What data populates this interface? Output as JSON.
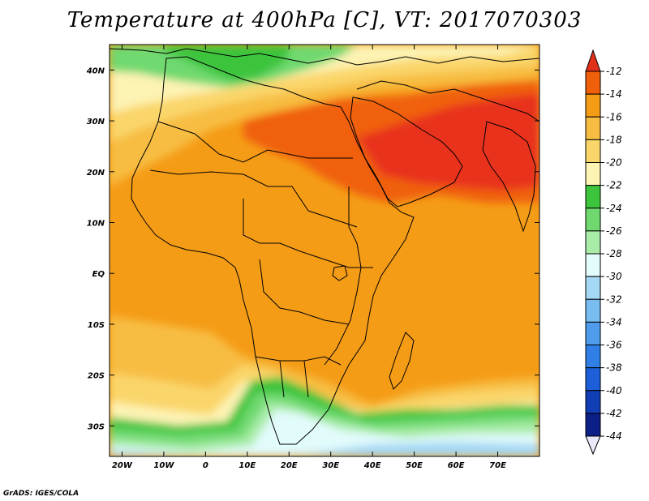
{
  "title": "Temperature at 400hPa [C], VT: 2017070303",
  "credit": "GrADS: IGES/COLA",
  "map": {
    "lon_range": [
      -23,
      80
    ],
    "lat_range": [
      -36,
      45
    ],
    "lon_ticks": [
      {
        "lon": -20,
        "label": "20W"
      },
      {
        "lon": -10,
        "label": "10W"
      },
      {
        "lon": 0,
        "label": "0"
      },
      {
        "lon": 10,
        "label": "10E"
      },
      {
        "lon": 20,
        "label": "20E"
      },
      {
        "lon": 30,
        "label": "30E"
      },
      {
        "lon": 40,
        "label": "40E"
      },
      {
        "lon": 50,
        "label": "50E"
      },
      {
        "lon": 60,
        "label": "60E"
      },
      {
        "lon": 70,
        "label": "70E"
      }
    ],
    "lat_ticks": [
      {
        "lat": 40,
        "label": "40N"
      },
      {
        "lat": 30,
        "label": "30N"
      },
      {
        "lat": 20,
        "label": "20N"
      },
      {
        "lat": 10,
        "label": "10N"
      },
      {
        "lat": 0,
        "label": "EQ"
      },
      {
        "lat": -10,
        "label": "10S"
      },
      {
        "lat": -20,
        "label": "20S"
      },
      {
        "lat": -30,
        "label": "30S"
      }
    ]
  },
  "colorbar": {
    "labels": [
      "-12",
      "-14",
      "-16",
      "-18",
      "-20",
      "-22",
      "-24",
      "-26",
      "-28",
      "-30",
      "-32",
      "-34",
      "-36",
      "-38",
      "-40",
      "-42",
      "-44"
    ],
    "colors": [
      "#e8301a",
      "#f0600a",
      "#f59c17",
      "#f7bd42",
      "#fad66a",
      "#fdf3b3",
      "#3cc43c",
      "#6fd96f",
      "#a8eca8",
      "#e2fbfb",
      "#a5d8f5",
      "#78bdf0",
      "#4f9cec",
      "#2f7fe6",
      "#1c5fd8",
      "#113eb4",
      "#0c1f86"
    ],
    "top_arrow_color": "#e0301a",
    "bottom_arrow_color": "#e8e8f8"
  }
}
